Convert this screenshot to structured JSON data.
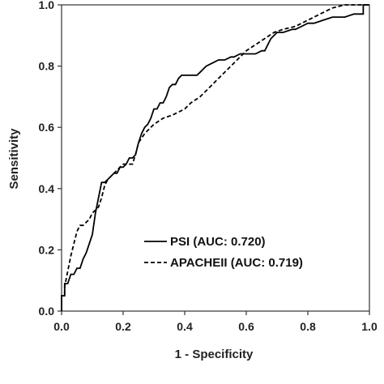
{
  "chart_data": {
    "type": "line",
    "xlabel": "1 - Specificity",
    "ylabel": "Sensitivity",
    "xlim": [
      0.0,
      1.0
    ],
    "ylim": [
      0.0,
      1.0
    ],
    "x_ticks": [
      "0.0",
      "0.2",
      "0.4",
      "0.6",
      "0.8",
      "1.0"
    ],
    "y_ticks": [
      "0.0",
      "0.2",
      "0.4",
      "0.6",
      "0.8",
      "1.0"
    ],
    "grid": false,
    "legend_position": "lower-right",
    "series": [
      {
        "name": "PSI (AUC: 0.720)",
        "style": "solid",
        "color": "#000000",
        "points": [
          [
            0.0,
            0.0
          ],
          [
            0.0,
            0.05
          ],
          [
            0.01,
            0.05
          ],
          [
            0.01,
            0.09
          ],
          [
            0.02,
            0.09
          ],
          [
            0.03,
            0.12
          ],
          [
            0.04,
            0.12
          ],
          [
            0.05,
            0.14
          ],
          [
            0.06,
            0.14
          ],
          [
            0.07,
            0.17
          ],
          [
            0.08,
            0.19
          ],
          [
            0.09,
            0.22
          ],
          [
            0.1,
            0.25
          ],
          [
            0.11,
            0.32
          ],
          [
            0.12,
            0.37
          ],
          [
            0.13,
            0.42
          ],
          [
            0.14,
            0.42
          ],
          [
            0.15,
            0.43
          ],
          [
            0.16,
            0.44
          ],
          [
            0.17,
            0.45
          ],
          [
            0.18,
            0.45
          ],
          [
            0.19,
            0.47
          ],
          [
            0.2,
            0.47
          ],
          [
            0.21,
            0.48
          ],
          [
            0.22,
            0.5
          ],
          [
            0.23,
            0.5
          ],
          [
            0.24,
            0.51
          ],
          [
            0.25,
            0.55
          ],
          [
            0.26,
            0.58
          ],
          [
            0.27,
            0.6
          ],
          [
            0.28,
            0.61
          ],
          [
            0.29,
            0.63
          ],
          [
            0.3,
            0.66
          ],
          [
            0.31,
            0.66
          ],
          [
            0.32,
            0.68
          ],
          [
            0.33,
            0.68
          ],
          [
            0.34,
            0.7
          ],
          [
            0.35,
            0.73
          ],
          [
            0.36,
            0.74
          ],
          [
            0.37,
            0.74
          ],
          [
            0.38,
            0.76
          ],
          [
            0.39,
            0.77
          ],
          [
            0.42,
            0.77
          ],
          [
            0.44,
            0.77
          ],
          [
            0.45,
            0.78
          ],
          [
            0.46,
            0.79
          ],
          [
            0.47,
            0.8
          ],
          [
            0.49,
            0.81
          ],
          [
            0.51,
            0.82
          ],
          [
            0.53,
            0.82
          ],
          [
            0.55,
            0.83
          ],
          [
            0.56,
            0.83
          ],
          [
            0.58,
            0.84
          ],
          [
            0.6,
            0.84
          ],
          [
            0.63,
            0.84
          ],
          [
            0.65,
            0.85
          ],
          [
            0.66,
            0.85
          ],
          [
            0.67,
            0.87
          ],
          [
            0.68,
            0.89
          ],
          [
            0.7,
            0.91
          ],
          [
            0.72,
            0.91
          ],
          [
            0.75,
            0.92
          ],
          [
            0.76,
            0.92
          ],
          [
            0.78,
            0.93
          ],
          [
            0.8,
            0.94
          ],
          [
            0.82,
            0.94
          ],
          [
            0.85,
            0.95
          ],
          [
            0.88,
            0.96
          ],
          [
            0.9,
            0.96
          ],
          [
            0.92,
            0.96
          ],
          [
            0.95,
            0.97
          ],
          [
            0.98,
            0.97
          ],
          [
            0.98,
            1.0
          ],
          [
            1.0,
            1.0
          ]
        ]
      },
      {
        "name": "APACHEII (AUC: 0.719)",
        "style": "dashed",
        "color": "#000000",
        "points": [
          [
            0.0,
            0.0
          ],
          [
            0.0,
            0.05
          ],
          [
            0.01,
            0.05
          ],
          [
            0.01,
            0.08
          ],
          [
            0.02,
            0.13
          ],
          [
            0.03,
            0.18
          ],
          [
            0.04,
            0.22
          ],
          [
            0.05,
            0.26
          ],
          [
            0.06,
            0.28
          ],
          [
            0.07,
            0.28
          ],
          [
            0.08,
            0.29
          ],
          [
            0.09,
            0.3
          ],
          [
            0.1,
            0.32
          ],
          [
            0.11,
            0.33
          ],
          [
            0.12,
            0.34
          ],
          [
            0.13,
            0.37
          ],
          [
            0.14,
            0.41
          ],
          [
            0.15,
            0.43
          ],
          [
            0.16,
            0.44
          ],
          [
            0.17,
            0.45
          ],
          [
            0.18,
            0.46
          ],
          [
            0.19,
            0.47
          ],
          [
            0.2,
            0.48
          ],
          [
            0.22,
            0.48
          ],
          [
            0.23,
            0.48
          ],
          [
            0.24,
            0.51
          ],
          [
            0.25,
            0.55
          ],
          [
            0.27,
            0.58
          ],
          [
            0.3,
            0.61
          ],
          [
            0.33,
            0.63
          ],
          [
            0.36,
            0.64
          ],
          [
            0.4,
            0.66
          ],
          [
            0.42,
            0.68
          ],
          [
            0.45,
            0.7
          ],
          [
            0.48,
            0.73
          ],
          [
            0.51,
            0.76
          ],
          [
            0.54,
            0.79
          ],
          [
            0.57,
            0.82
          ],
          [
            0.6,
            0.85
          ],
          [
            0.63,
            0.87
          ],
          [
            0.66,
            0.89
          ],
          [
            0.69,
            0.91
          ],
          [
            0.72,
            0.92
          ],
          [
            0.76,
            0.93
          ],
          [
            0.8,
            0.95
          ],
          [
            0.84,
            0.97
          ],
          [
            0.88,
            0.99
          ],
          [
            0.92,
            1.0
          ],
          [
            1.0,
            1.0
          ]
        ]
      }
    ]
  }
}
